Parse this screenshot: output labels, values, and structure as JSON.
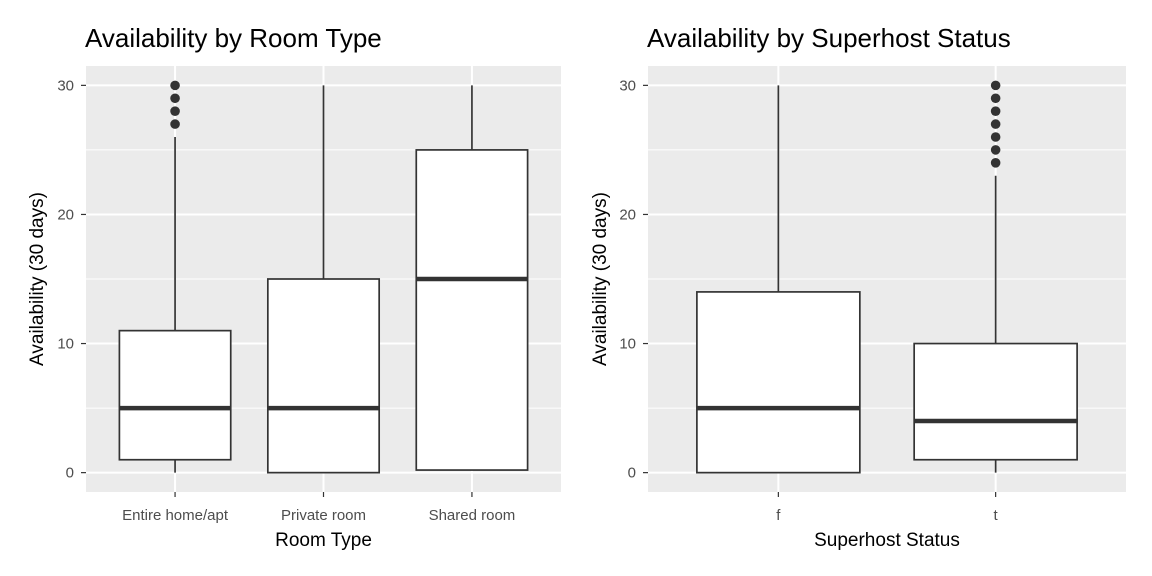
{
  "chart_data": [
    {
      "type": "boxplot",
      "title": "Availability by Room Type",
      "xlabel": "Room Type",
      "ylabel": "Availability (30 days)",
      "ylim": [
        -1.5,
        31.5
      ],
      "yticks": [
        0,
        10,
        20,
        30
      ],
      "grid": true,
      "categories": [
        "Entire home/apt",
        "Private room",
        "Shared room"
      ],
      "boxes": [
        {
          "min": 0,
          "q1": 1,
          "median": 5,
          "q3": 11,
          "max": 26,
          "outliers": [
            27,
            28,
            29,
            30
          ]
        },
        {
          "min": 0,
          "q1": 0,
          "median": 5,
          "q3": 15,
          "max": 30,
          "outliers": []
        },
        {
          "min": 0.2,
          "q1": 0.2,
          "median": 15,
          "q3": 25,
          "max": 30,
          "outliers": []
        }
      ]
    },
    {
      "type": "boxplot",
      "title": "Availability by Superhost Status",
      "xlabel": "Superhost Status",
      "ylabel": "Availability (30 days)",
      "ylim": [
        -1.5,
        31.5
      ],
      "yticks": [
        0,
        10,
        20,
        30
      ],
      "grid": true,
      "categories": [
        "f",
        "t"
      ],
      "boxes": [
        {
          "min": 0,
          "q1": 0,
          "median": 5,
          "q3": 14,
          "max": 30,
          "outliers": []
        },
        {
          "min": 0,
          "q1": 1,
          "median": 4,
          "q3": 10,
          "max": 23,
          "outliers": [
            24,
            25,
            26,
            27,
            28,
            29,
            30
          ]
        }
      ]
    }
  ],
  "colors": {
    "panel_background": "#ebebeb",
    "gridline": "#ffffff",
    "box_fill": "#ffffff",
    "box_line": "#333333",
    "tick_label": "#4d4d4d"
  }
}
